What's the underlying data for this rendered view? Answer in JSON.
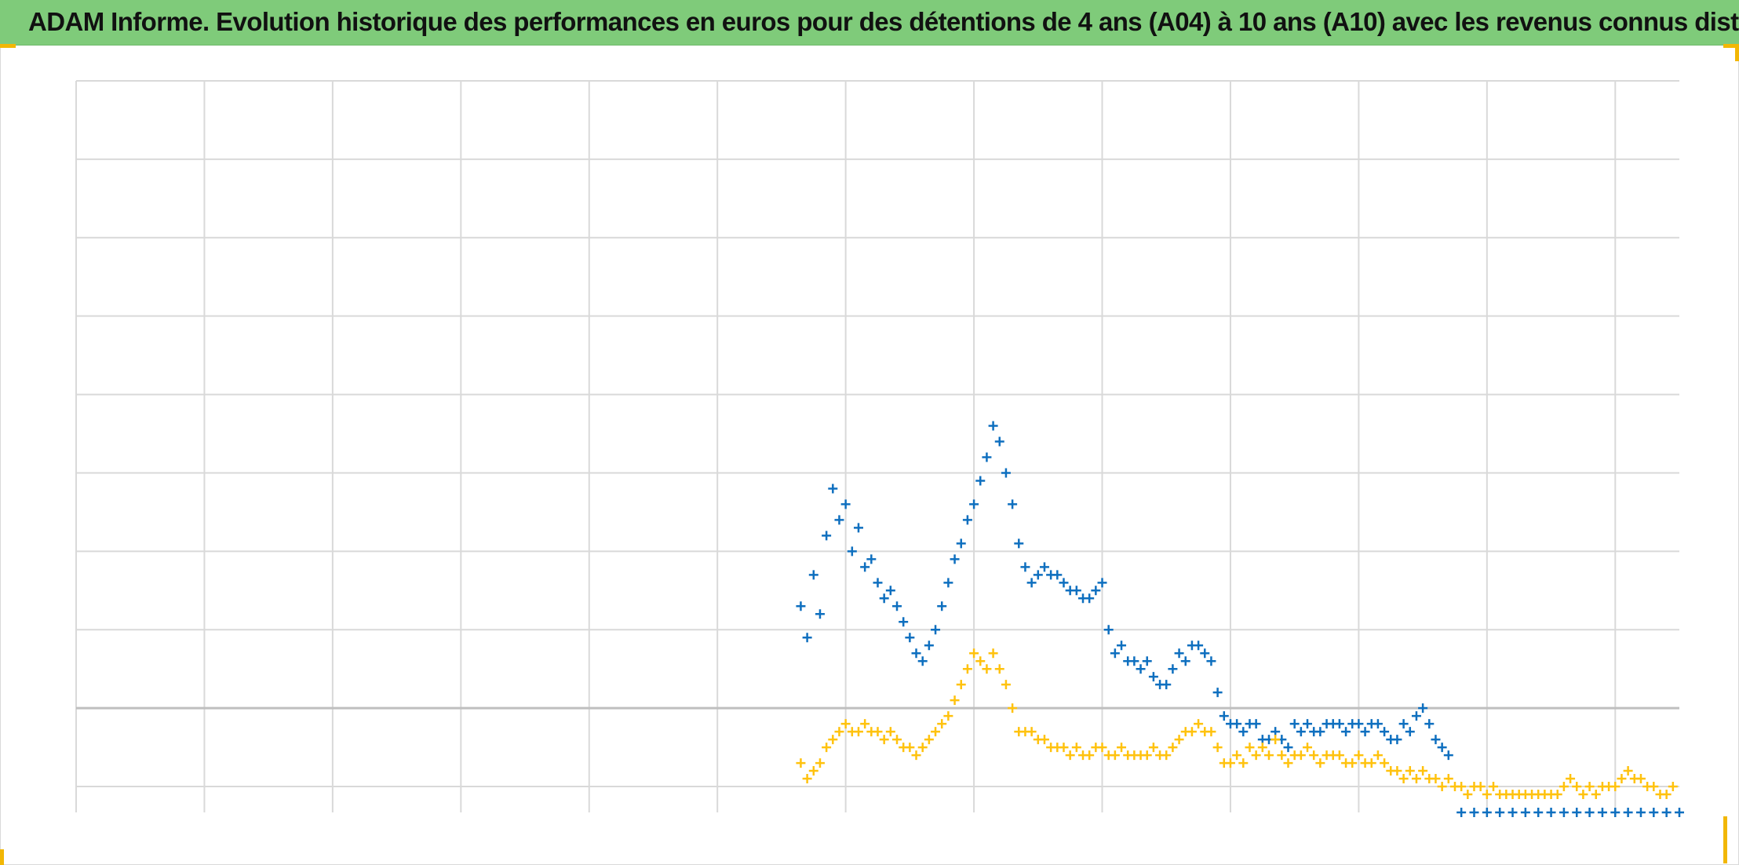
{
  "title": "ADAM Informe. Evolution historique des performances en euros pour des détentions de 4 ans (A04) à 10 ans (A10) avec les revenus connus distribués",
  "colors": {
    "title_bg": "#7fcb7a",
    "series_a": "#0e6fbf",
    "series_b": "#ffc20e",
    "grid": "#d9d9d9",
    "zero_line": "#bfbfbf",
    "accent": "#f2b705"
  },
  "chart_data": {
    "type": "scatter",
    "marker": "plus",
    "title": "ADAM Informe. Evolution historique des performances en euros pour des détentions de 4 ans (A04) à 10 ans (A10) avec les revenus connus distribués",
    "xlabel": "",
    "ylabel": "",
    "xlim": [
      0,
      12.5
    ],
    "ylim": [
      -1.33,
      8
    ],
    "reference_line_y": 0,
    "grid": true,
    "legend": "none",
    "series": [
      {
        "color": "#0e6fbf",
        "points": [
          [
            5.65,
            1.3
          ],
          [
            5.7,
            0.9
          ],
          [
            5.75,
            1.7
          ],
          [
            5.8,
            1.2
          ],
          [
            5.85,
            2.2
          ],
          [
            5.9,
            2.8
          ],
          [
            5.95,
            2.4
          ],
          [
            6.0,
            2.6
          ],
          [
            6.05,
            2.0
          ],
          [
            6.1,
            2.3
          ],
          [
            6.15,
            1.8
          ],
          [
            6.2,
            1.9
          ],
          [
            6.25,
            1.6
          ],
          [
            6.3,
            1.4
          ],
          [
            6.35,
            1.5
          ],
          [
            6.4,
            1.3
          ],
          [
            6.45,
            1.1
          ],
          [
            6.5,
            0.9
          ],
          [
            6.55,
            0.7
          ],
          [
            6.6,
            0.6
          ],
          [
            6.65,
            0.8
          ],
          [
            6.7,
            1.0
          ],
          [
            6.75,
            1.3
          ],
          [
            6.8,
            1.6
          ],
          [
            6.85,
            1.9
          ],
          [
            6.9,
            2.1
          ],
          [
            6.95,
            2.4
          ],
          [
            7.0,
            2.6
          ],
          [
            7.05,
            2.9
          ],
          [
            7.1,
            3.2
          ],
          [
            7.15,
            3.6
          ],
          [
            7.2,
            3.4
          ],
          [
            7.25,
            3.0
          ],
          [
            7.3,
            2.6
          ],
          [
            7.35,
            2.1
          ],
          [
            7.4,
            1.8
          ],
          [
            7.45,
            1.6
          ],
          [
            7.5,
            1.7
          ],
          [
            7.55,
            1.8
          ],
          [
            7.6,
            1.7
          ],
          [
            7.65,
            1.7
          ],
          [
            7.7,
            1.6
          ],
          [
            7.75,
            1.5
          ],
          [
            7.8,
            1.5
          ],
          [
            7.85,
            1.4
          ],
          [
            7.9,
            1.4
          ],
          [
            7.95,
            1.5
          ],
          [
            8.0,
            1.6
          ],
          [
            8.05,
            1.0
          ],
          [
            8.1,
            0.7
          ],
          [
            8.15,
            0.8
          ],
          [
            8.2,
            0.6
          ],
          [
            8.25,
            0.6
          ],
          [
            8.3,
            0.5
          ],
          [
            8.35,
            0.6
          ],
          [
            8.4,
            0.4
          ],
          [
            8.45,
            0.3
          ],
          [
            8.5,
            0.3
          ],
          [
            8.55,
            0.5
          ],
          [
            8.6,
            0.7
          ],
          [
            8.65,
            0.6
          ],
          [
            8.7,
            0.8
          ],
          [
            8.75,
            0.8
          ],
          [
            8.8,
            0.7
          ],
          [
            8.85,
            0.6
          ],
          [
            8.9,
            0.2
          ],
          [
            8.95,
            -0.1
          ],
          [
            9.0,
            -0.2
          ],
          [
            9.05,
            -0.2
          ],
          [
            9.1,
            -0.3
          ],
          [
            9.15,
            -0.2
          ],
          [
            9.2,
            -0.2
          ],
          [
            9.25,
            -0.4
          ],
          [
            9.3,
            -0.4
          ],
          [
            9.35,
            -0.3
          ],
          [
            9.4,
            -0.4
          ],
          [
            9.45,
            -0.5
          ],
          [
            9.5,
            -0.2
          ],
          [
            9.55,
            -0.3
          ],
          [
            9.6,
            -0.2
          ],
          [
            9.65,
            -0.3
          ],
          [
            9.7,
            -0.3
          ],
          [
            9.75,
            -0.2
          ],
          [
            9.8,
            -0.2
          ],
          [
            9.85,
            -0.2
          ],
          [
            9.9,
            -0.3
          ],
          [
            9.95,
            -0.2
          ],
          [
            10.0,
            -0.2
          ],
          [
            10.05,
            -0.3
          ],
          [
            10.1,
            -0.2
          ],
          [
            10.15,
            -0.2
          ],
          [
            10.2,
            -0.3
          ],
          [
            10.25,
            -0.4
          ],
          [
            10.3,
            -0.4
          ],
          [
            10.35,
            -0.2
          ],
          [
            10.4,
            -0.3
          ],
          [
            10.45,
            -0.1
          ],
          [
            10.5,
            0.0
          ],
          [
            10.55,
            -0.2
          ],
          [
            10.6,
            -0.4
          ],
          [
            10.65,
            -0.5
          ],
          [
            10.7,
            -0.6
          ],
          [
            10.8,
            -1.33
          ],
          [
            10.9,
            -1.33
          ],
          [
            11.0,
            -1.33
          ],
          [
            11.1,
            -1.33
          ],
          [
            11.2,
            -1.33
          ],
          [
            11.3,
            -1.33
          ],
          [
            11.4,
            -1.33
          ],
          [
            11.5,
            -1.33
          ],
          [
            11.6,
            -1.33
          ],
          [
            11.7,
            -1.33
          ],
          [
            11.8,
            -1.33
          ],
          [
            11.9,
            -1.33
          ],
          [
            12.0,
            -1.33
          ],
          [
            12.1,
            -1.33
          ],
          [
            12.2,
            -1.33
          ],
          [
            12.3,
            -1.33
          ],
          [
            12.4,
            -1.33
          ],
          [
            12.5,
            -1.33
          ]
        ]
      },
      {
        "color": "#ffc20e",
        "points": [
          [
            5.65,
            -0.7
          ],
          [
            5.7,
            -0.9
          ],
          [
            5.75,
            -0.8
          ],
          [
            5.8,
            -0.7
          ],
          [
            5.85,
            -0.5
          ],
          [
            5.9,
            -0.4
          ],
          [
            5.95,
            -0.3
          ],
          [
            6.0,
            -0.2
          ],
          [
            6.05,
            -0.3
          ],
          [
            6.1,
            -0.3
          ],
          [
            6.15,
            -0.2
          ],
          [
            6.2,
            -0.3
          ],
          [
            6.25,
            -0.3
          ],
          [
            6.3,
            -0.4
          ],
          [
            6.35,
            -0.3
          ],
          [
            6.4,
            -0.4
          ],
          [
            6.45,
            -0.5
          ],
          [
            6.5,
            -0.5
          ],
          [
            6.55,
            -0.6
          ],
          [
            6.6,
            -0.5
          ],
          [
            6.65,
            -0.4
          ],
          [
            6.7,
            -0.3
          ],
          [
            6.75,
            -0.2
          ],
          [
            6.8,
            -0.1
          ],
          [
            6.85,
            0.1
          ],
          [
            6.9,
            0.3
          ],
          [
            6.95,
            0.5
          ],
          [
            7.0,
            0.7
          ],
          [
            7.05,
            0.6
          ],
          [
            7.1,
            0.5
          ],
          [
            7.15,
            0.7
          ],
          [
            7.2,
            0.5
          ],
          [
            7.25,
            0.3
          ],
          [
            7.3,
            0.0
          ],
          [
            7.35,
            -0.3
          ],
          [
            7.4,
            -0.3
          ],
          [
            7.45,
            -0.3
          ],
          [
            7.5,
            -0.4
          ],
          [
            7.55,
            -0.4
          ],
          [
            7.6,
            -0.5
          ],
          [
            7.65,
            -0.5
          ],
          [
            7.7,
            -0.5
          ],
          [
            7.75,
            -0.6
          ],
          [
            7.8,
            -0.5
          ],
          [
            7.85,
            -0.6
          ],
          [
            7.9,
            -0.6
          ],
          [
            7.95,
            -0.5
          ],
          [
            8.0,
            -0.5
          ],
          [
            8.05,
            -0.6
          ],
          [
            8.1,
            -0.6
          ],
          [
            8.15,
            -0.5
          ],
          [
            8.2,
            -0.6
          ],
          [
            8.25,
            -0.6
          ],
          [
            8.3,
            -0.6
          ],
          [
            8.35,
            -0.6
          ],
          [
            8.4,
            -0.5
          ],
          [
            8.45,
            -0.6
          ],
          [
            8.5,
            -0.6
          ],
          [
            8.55,
            -0.5
          ],
          [
            8.6,
            -0.4
          ],
          [
            8.65,
            -0.3
          ],
          [
            8.7,
            -0.3
          ],
          [
            8.75,
            -0.2
          ],
          [
            8.8,
            -0.3
          ],
          [
            8.85,
            -0.3
          ],
          [
            8.9,
            -0.5
          ],
          [
            8.95,
            -0.7
          ],
          [
            9.0,
            -0.7
          ],
          [
            9.05,
            -0.6
          ],
          [
            9.1,
            -0.7
          ],
          [
            9.15,
            -0.5
          ],
          [
            9.2,
            -0.6
          ],
          [
            9.25,
            -0.5
          ],
          [
            9.3,
            -0.6
          ],
          [
            9.35,
            -0.4
          ],
          [
            9.4,
            -0.6
          ],
          [
            9.45,
            -0.7
          ],
          [
            9.5,
            -0.6
          ],
          [
            9.55,
            -0.6
          ],
          [
            9.6,
            -0.5
          ],
          [
            9.65,
            -0.6
          ],
          [
            9.7,
            -0.7
          ],
          [
            9.75,
            -0.6
          ],
          [
            9.8,
            -0.6
          ],
          [
            9.85,
            -0.6
          ],
          [
            9.9,
            -0.7
          ],
          [
            9.95,
            -0.7
          ],
          [
            10.0,
            -0.6
          ],
          [
            10.05,
            -0.7
          ],
          [
            10.1,
            -0.7
          ],
          [
            10.15,
            -0.6
          ],
          [
            10.2,
            -0.7
          ],
          [
            10.25,
            -0.8
          ],
          [
            10.3,
            -0.8
          ],
          [
            10.35,
            -0.9
          ],
          [
            10.4,
            -0.8
          ],
          [
            10.45,
            -0.9
          ],
          [
            10.5,
            -0.8
          ],
          [
            10.55,
            -0.9
          ],
          [
            10.6,
            -0.9
          ],
          [
            10.65,
            -1.0
          ],
          [
            10.7,
            -0.9
          ],
          [
            10.75,
            -1.0
          ],
          [
            10.8,
            -1.0
          ],
          [
            10.85,
            -1.1
          ],
          [
            10.9,
            -1.0
          ],
          [
            10.95,
            -1.0
          ],
          [
            11.0,
            -1.1
          ],
          [
            11.05,
            -1.0
          ],
          [
            11.1,
            -1.1
          ],
          [
            11.15,
            -1.1
          ],
          [
            11.2,
            -1.1
          ],
          [
            11.25,
            -1.1
          ],
          [
            11.3,
            -1.1
          ],
          [
            11.35,
            -1.1
          ],
          [
            11.4,
            -1.1
          ],
          [
            11.45,
            -1.1
          ],
          [
            11.5,
            -1.1
          ],
          [
            11.55,
            -1.1
          ],
          [
            11.6,
            -1.0
          ],
          [
            11.65,
            -0.9
          ],
          [
            11.7,
            -1.0
          ],
          [
            11.75,
            -1.1
          ],
          [
            11.8,
            -1.0
          ],
          [
            11.85,
            -1.1
          ],
          [
            11.9,
            -1.0
          ],
          [
            11.95,
            -1.0
          ],
          [
            12.0,
            -1.0
          ],
          [
            12.05,
            -0.9
          ],
          [
            12.1,
            -0.8
          ],
          [
            12.15,
            -0.9
          ],
          [
            12.2,
            -0.9
          ],
          [
            12.25,
            -1.0
          ],
          [
            12.3,
            -1.0
          ],
          [
            12.35,
            -1.1
          ],
          [
            12.4,
            -1.1
          ],
          [
            12.45,
            -1.0
          ]
        ]
      }
    ]
  }
}
